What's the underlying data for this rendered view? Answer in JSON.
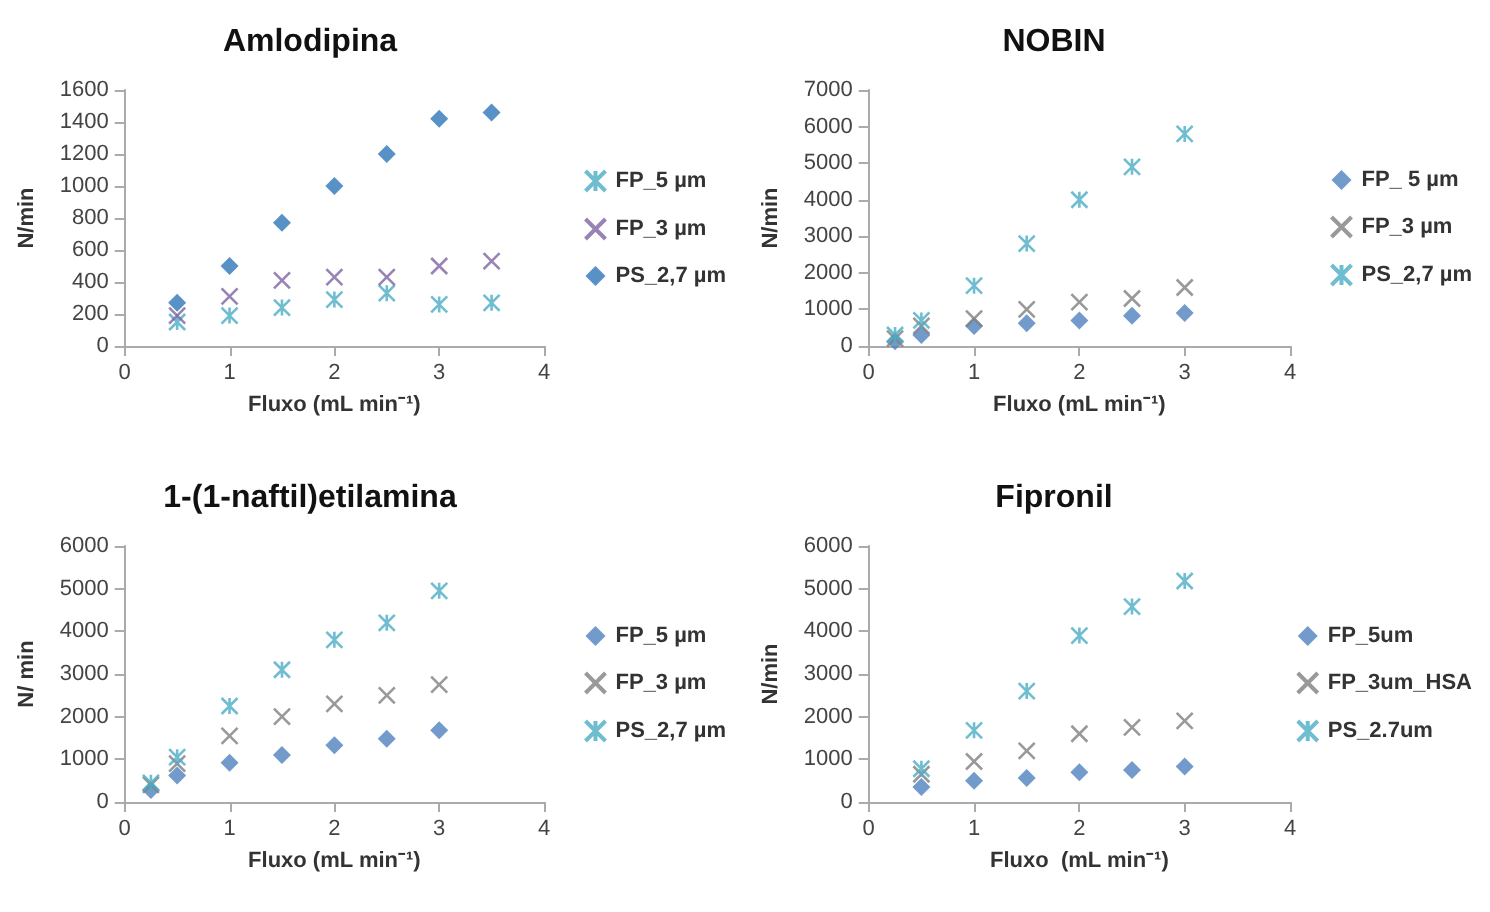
{
  "chart_data": [
    {
      "type": "scatter",
      "title": "Amlodipina",
      "xlabel": "Fluxo (mL min⁻¹)",
      "ylabel": "N/min",
      "x": [
        0.5,
        1,
        1.5,
        2,
        2.5,
        3,
        3.5
      ],
      "xlim": [
        0,
        4
      ],
      "xticks": [
        0,
        1,
        2,
        3,
        4
      ],
      "ylim": [
        0,
        1600
      ],
      "yticks": [
        0,
        200,
        400,
        600,
        800,
        1000,
        1200,
        1400,
        1600
      ],
      "legend": "right",
      "grid": false,
      "series": [
        {
          "name": "FP_5 µm",
          "color": "#4bacc6",
          "values": [
            150,
            190,
            240,
            290,
            330,
            260,
            270
          ]
        },
        {
          "name": "FP_3 µm",
          "color": "#8064a2",
          "marker": "cross",
          "values": [
            190,
            310,
            410,
            430,
            430,
            500,
            530
          ]
        },
        {
          "name": "PS_2,7 µm",
          "color": "#2e75b6",
          "marker": "diamond",
          "values": [
            270,
            500,
            770,
            1000,
            1200,
            1420,
            1460
          ]
        }
      ]
    },
    {
      "type": "scatter",
      "title": "NOBIN",
      "xlabel": "Fluxo (mL min⁻¹)",
      "ylabel": "N/min",
      "x": [
        0.25,
        0.5,
        1,
        1.5,
        2,
        2.5,
        3
      ],
      "xlim": [
        0,
        4
      ],
      "xticks": [
        0,
        1,
        2,
        3,
        4
      ],
      "ylim": [
        0,
        7000
      ],
      "yticks": [
        0,
        1000,
        2000,
        3000,
        4000,
        5000,
        6000,
        7000
      ],
      "legend": "right",
      "grid": false,
      "series": [
        {
          "name": "FP_ 5 µm",
          "color": "#4f81bd",
          "marker": "diamond",
          "values": [
            130,
            300,
            550,
            620,
            700,
            830,
            900
          ]
        },
        {
          "name": "FP_3 µm",
          "color": "#7f7f7f",
          "marker": "cross",
          "values": [
            200,
            550,
            750,
            1000,
            1200,
            1300,
            1600
          ]
        },
        {
          "name": "PS_2,7 µm",
          "color": "#4bacc6",
          "values": [
            300,
            700,
            1650,
            2800,
            4000,
            4900,
            5800
          ]
        }
      ]
    },
    {
      "type": "scatter",
      "title": "1-(1-naftil)etilamina",
      "xlabel": "Fluxo (mL min⁻¹)",
      "ylabel": "N/ min",
      "x": [
        0.25,
        0.5,
        1,
        1.5,
        2,
        2.5,
        3
      ],
      "xlim": [
        0,
        4
      ],
      "xticks": [
        0,
        1,
        2,
        3,
        4
      ],
      "ylim": [
        0,
        6000
      ],
      "yticks": [
        0,
        1000,
        2000,
        3000,
        4000,
        5000,
        6000
      ],
      "legend": "right",
      "grid": false,
      "series": [
        {
          "name": "FP_5 µm",
          "color": "#4f81bd",
          "marker": "diamond",
          "values": [
            280,
            620,
            920,
            1100,
            1330,
            1480,
            1680
          ]
        },
        {
          "name": "FP_3 µm",
          "color": "#7f7f7f",
          "marker": "cross",
          "values": [
            400,
            900,
            1550,
            2000,
            2300,
            2500,
            2750
          ]
        },
        {
          "name": "PS_2,7 µm",
          "color": "#4bacc6",
          "values": [
            450,
            1050,
            2250,
            3100,
            3800,
            4200,
            4950
          ]
        }
      ]
    },
    {
      "type": "scatter",
      "title": "Fipronil",
      "xlabel": "Fluxo  (mL min⁻¹)",
      "ylabel": "N/min",
      "x": [
        0.5,
        1,
        1.5,
        2,
        2.5,
        3
      ],
      "xlim": [
        0,
        4
      ],
      "xticks": [
        0,
        1,
        2,
        3,
        4
      ],
      "ylim": [
        0,
        6000
      ],
      "yticks": [
        0,
        1000,
        2000,
        3000,
        4000,
        5000,
        6000
      ],
      "legend": "right",
      "grid": false,
      "series": [
        {
          "name": "FP_5um",
          "color": "#4f81bd",
          "marker": "diamond",
          "values": [
            350,
            500,
            560,
            700,
            750,
            830
          ]
        },
        {
          "name": "FP_3um_HSA",
          "color": "#7f7f7f",
          "marker": "cross",
          "values": [
            650,
            950,
            1200,
            1600,
            1750,
            1900
          ]
        },
        {
          "name": "PS_2.7um",
          "color": "#4bacc6",
          "values": [
            780,
            1680,
            2600,
            3900,
            4580,
            5180
          ]
        }
      ]
    }
  ]
}
